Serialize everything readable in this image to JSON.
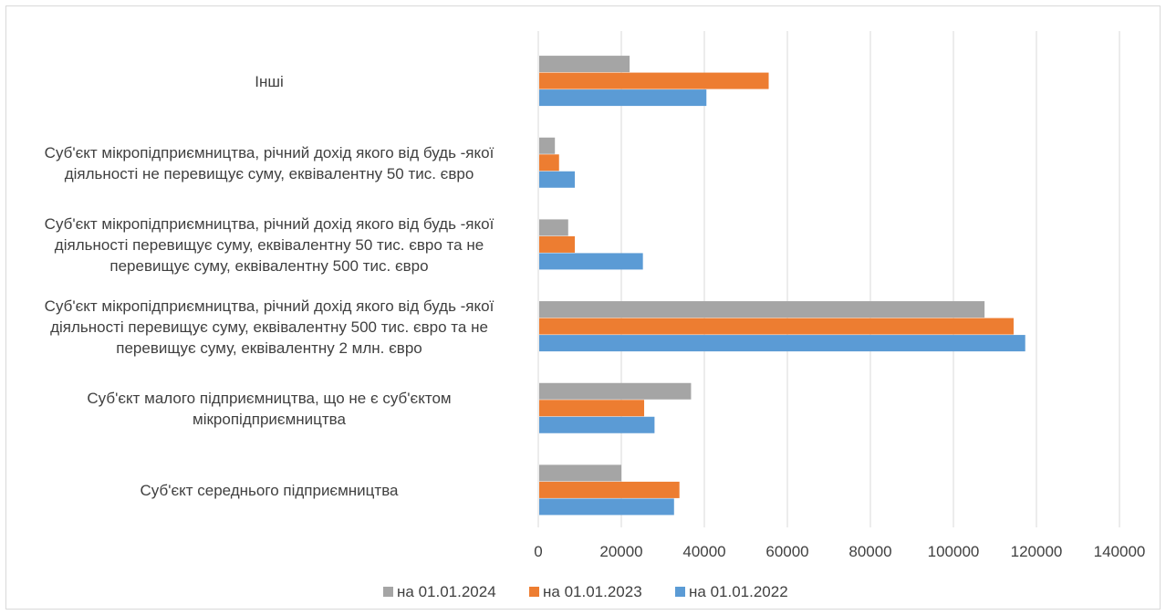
{
  "chart_data": {
    "type": "bar",
    "orientation": "horizontal",
    "title": "",
    "xlabel": "",
    "ylabel": "",
    "xlim": [
      0,
      140000
    ],
    "x_ticks": [
      "0",
      "20000",
      "40000",
      "60000",
      "80000",
      "100000",
      "120000",
      "140000"
    ],
    "grid": "vertical",
    "legend_position": "bottom",
    "categories": [
      [
        "Інші"
      ],
      [
        "Суб'єкт мікропідприємництва, річний дохід якого від будь -якої",
        "діяльності не перевищує суму, еквівалентну 50 тис. євро"
      ],
      [
        "Суб'єкт мікропідприємництва, річний дохід якого від будь -якої",
        "діяльності перевищує суму, еквівалентну 50 тис. євро та не",
        "перевищує суму, еквівалентну 500 тис. євро"
      ],
      [
        "Суб'єкт мікропідприємництва, річний дохід якого від будь -якої",
        "діяльності перевищує суму, еквівалентну 500 тис. євро та не",
        "перевищує суму, еквівалентну 2 млн. євро"
      ],
      [
        "Суб'єкт малого підприємництва, що не є суб'єктом",
        "мікропідприємництва"
      ],
      [
        "Суб'єкт середнього підприємництва"
      ]
    ],
    "series": [
      {
        "name": "на 01.01.2024",
        "color": "#a5a5a5",
        "values": [
          22000,
          4000,
          7200,
          107500,
          36800,
          20000
        ]
      },
      {
        "name": "на 01.01.2023",
        "color": "#ed7d31",
        "values": [
          55500,
          5000,
          8800,
          114500,
          25500,
          34000
        ]
      },
      {
        "name": "на 01.01.2022",
        "color": "#5b9bd5",
        "values": [
          40500,
          8800,
          25200,
          117300,
          28000,
          32700
        ]
      }
    ]
  }
}
